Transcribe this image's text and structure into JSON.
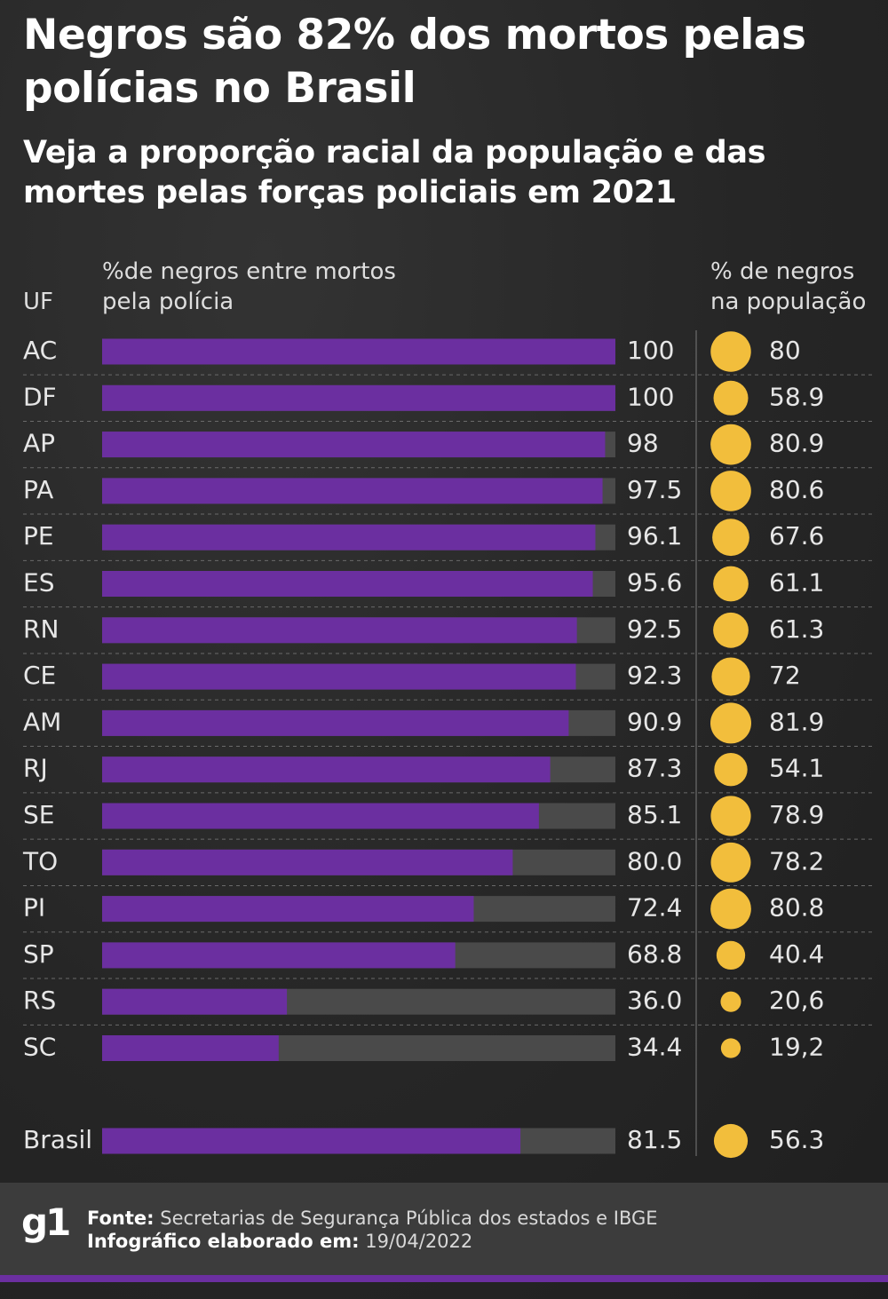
{
  "title": "Negros são 82% dos mortos pelas polícias no Brasil",
  "subtitle": "Veja a proporção racial da população e das mortes pelas forças policiais em 2021",
  "headers": {
    "uf": "UF",
    "bar": "%de negros entre mortos pela polícia",
    "pop": "% de negros na população"
  },
  "colors": {
    "bar": "#6b2fa0",
    "bar_track": "#4a4a4a",
    "dot": "#f2be3c",
    "background": "#2a2a2a"
  },
  "chart_data": {
    "type": "bar",
    "orientation": "horizontal",
    "xlim": [
      0,
      100
    ],
    "categories": [
      "AC",
      "DF",
      "AP",
      "PA",
      "PE",
      "ES",
      "RN",
      "CE",
      "AM",
      "RJ",
      "SE",
      "TO",
      "PI",
      "SP",
      "RS",
      "SC"
    ],
    "series": [
      {
        "name": "%de negros entre mortos pela polícia",
        "values": [
          100,
          100,
          98,
          97.5,
          96.1,
          95.6,
          92.5,
          92.3,
          90.9,
          87.3,
          85.1,
          80.0,
          72.4,
          68.8,
          36.0,
          34.4
        ],
        "labels": [
          "100",
          "100",
          "98",
          "97.5",
          "96.1",
          "95.6",
          "92.5",
          "92.3",
          "90.9",
          "87.3",
          "85.1",
          "80.0",
          "72.4",
          "68.8",
          "36.0",
          "34.4"
        ]
      },
      {
        "name": "% de negros na população",
        "values": [
          80,
          58.9,
          80.9,
          80.6,
          67.6,
          61.1,
          61.3,
          72,
          81.9,
          54.1,
          78.9,
          78.2,
          80.8,
          40.4,
          20.6,
          19.2
        ],
        "labels": [
          "80",
          "58.9",
          "80.9",
          "80.6",
          "67.6",
          "61.1",
          "61.3",
          "72",
          "81.9",
          "54.1",
          "78.9",
          "78.2",
          "80.8",
          "40.4",
          "20,6",
          "19,2"
        ]
      }
    ],
    "total": {
      "category": "Brasil",
      "bar_value": 81.5,
      "bar_label": "81.5",
      "pop_value": 56.3,
      "pop_label": "56.3"
    }
  },
  "footer": {
    "logo": "g1",
    "source_label": "Fonte:",
    "source_text": "Secretarias de Segurança Pública dos estados e IBGE",
    "date_label": "Infográfico elaborado em:",
    "date_text": "19/04/2022"
  }
}
